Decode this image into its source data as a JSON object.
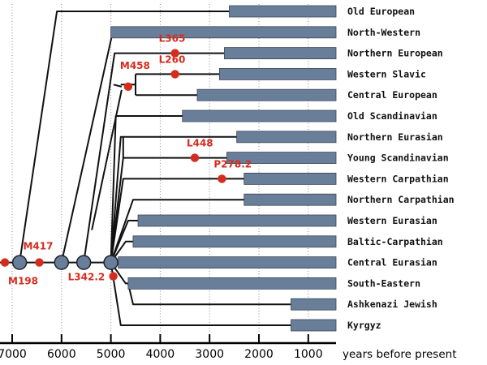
{
  "chart_data": {
    "type": "timeline-tree",
    "xlabel": "years before present",
    "xticks": [
      7000,
      6000,
      5000,
      4000,
      3000,
      2000,
      1000
    ],
    "xtick_labels": [
      "7000",
      "6000",
      "5000",
      "4000",
      "3000",
      "2000",
      "1000"
    ],
    "xlim": [
      7200,
      0
    ],
    "grid": "vertical dotted",
    "lineages": [
      {
        "name": "Old European",
        "start": 2600
      },
      {
        "name": "North-Western",
        "start": 5000
      },
      {
        "name": "Northern European",
        "start": 2700
      },
      {
        "name": "Western Slavic",
        "start": 2800
      },
      {
        "name": "Central European",
        "start": 3250
      },
      {
        "name": "Old Scandinavian",
        "start": 3550
      },
      {
        "name": "Northern Eurasian",
        "start": 2450
      },
      {
        "name": "Young Scandinavian",
        "start": 2650
      },
      {
        "name": "Western Carpathian",
        "start": 2300
      },
      {
        "name": "Northern Carpathian",
        "start": 2300
      },
      {
        "name": "Western Eurasian",
        "start": 4450
      },
      {
        "name": "Baltic-Carpathian",
        "start": 4550
      },
      {
        "name": "Central Eurasian",
        "start": 4850
      },
      {
        "name": "South-Eastern",
        "start": 4650
      },
      {
        "name": "Ashkenazi Jewish",
        "start": 1350
      },
      {
        "name": "Kyrgyz",
        "start": 1350
      }
    ],
    "nodes": [
      {
        "time": 6850
      },
      {
        "time": 6000
      },
      {
        "time": 5550
      },
      {
        "time": 5000
      }
    ],
    "mutations": [
      {
        "name": "M198",
        "time": 7250
      },
      {
        "name": "M417",
        "time": 6450
      },
      {
        "name": "L342.2",
        "time": 4950
      },
      {
        "name": "M458",
        "time": 4650
      },
      {
        "name": "L260",
        "time": 3700
      },
      {
        "name": "L365",
        "time": 3700
      },
      {
        "name": "L448",
        "time": 3300
      },
      {
        "name": "P278.2",
        "time": 2750
      }
    ]
  },
  "colors": {
    "bar": "#697e99",
    "bar_stroke": "#3a4655",
    "node": "#697e99",
    "mutation": "#d62c1f"
  }
}
